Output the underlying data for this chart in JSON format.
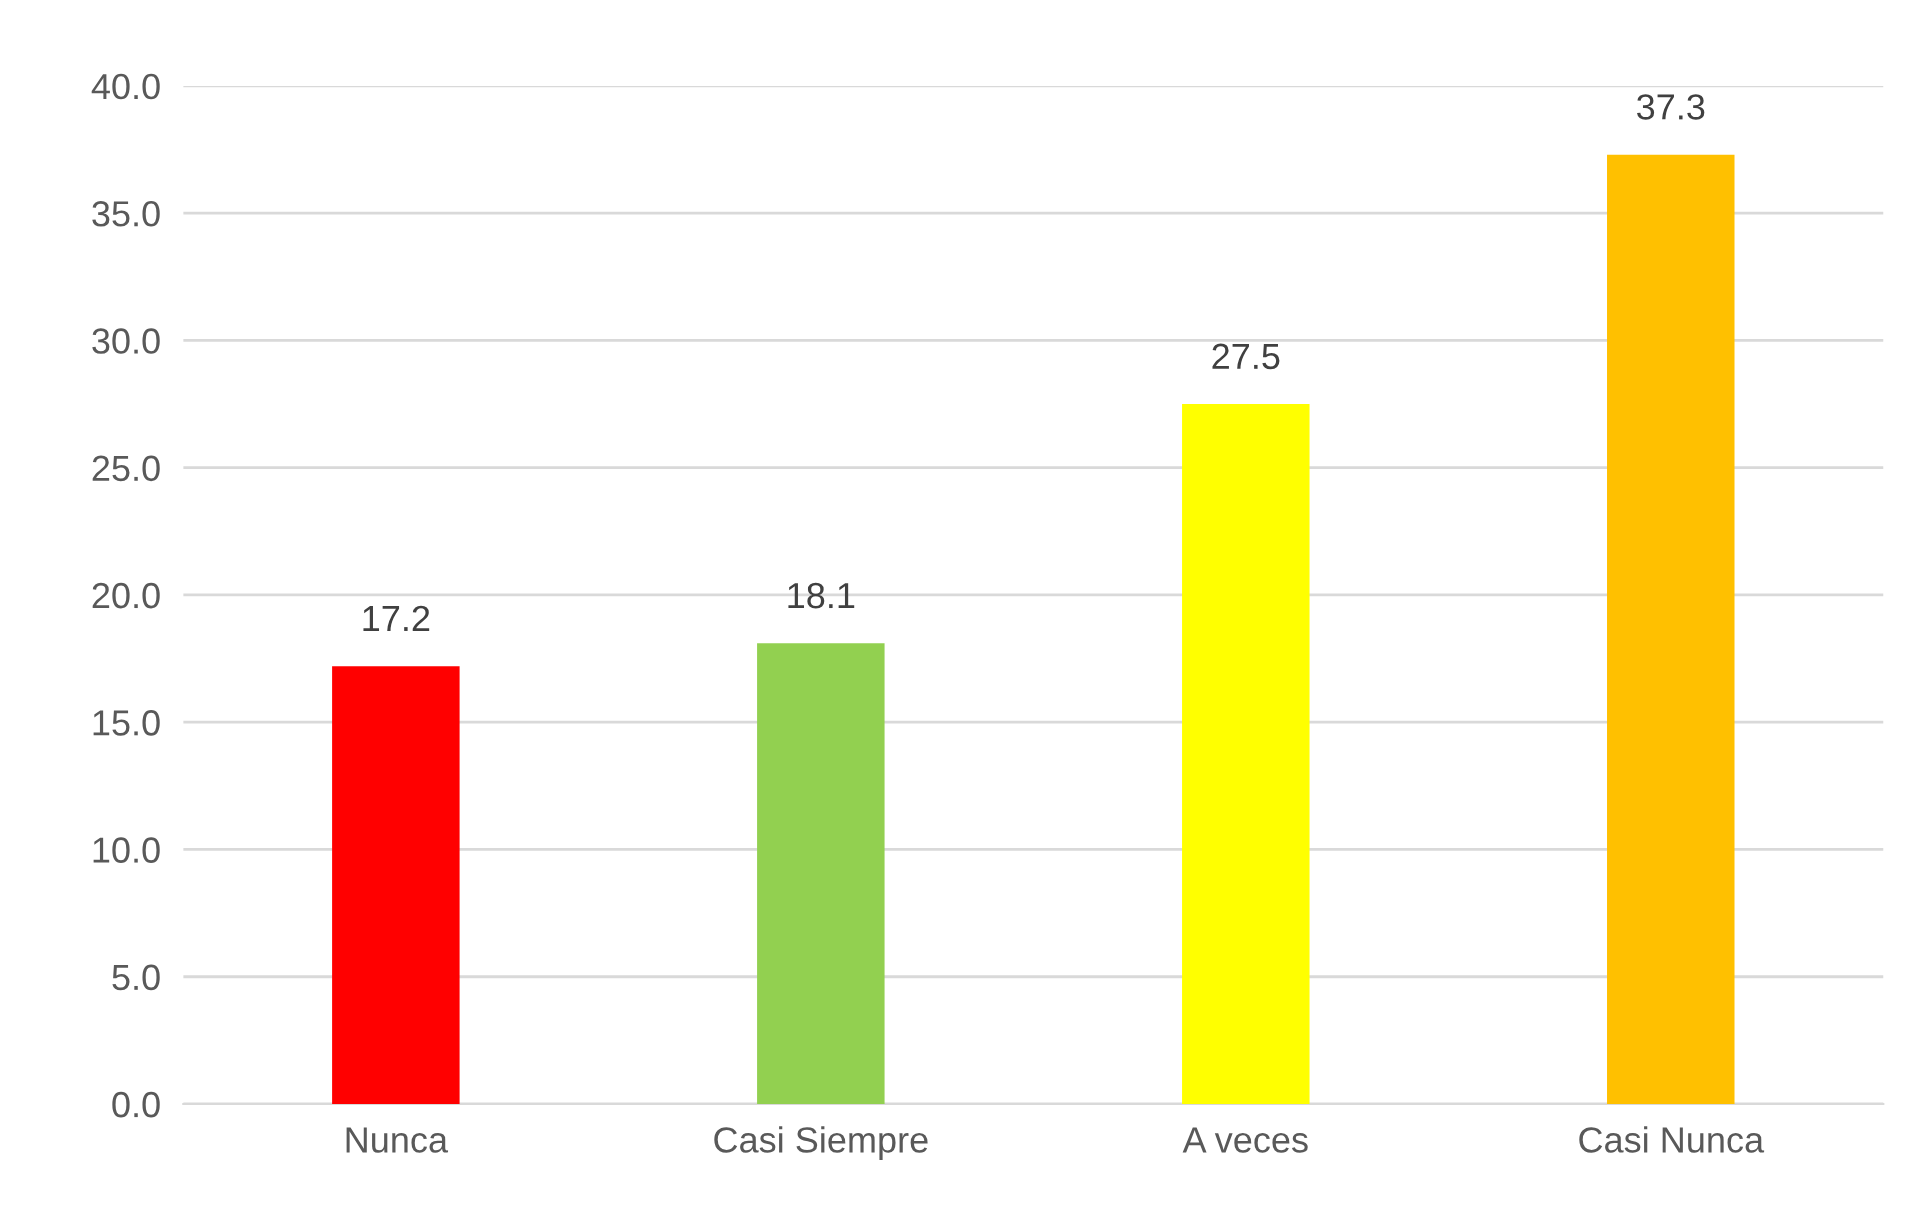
{
  "chart_data": {
    "type": "bar",
    "categories": [
      "Nunca",
      "Casi Siempre",
      "A veces",
      "Casi Nunca"
    ],
    "values": [
      17.2,
      18.1,
      27.5,
      37.3
    ],
    "colors": [
      "#ff0000",
      "#92d050",
      "#ffff00",
      "#ffc000"
    ],
    "ylim": [
      0,
      40
    ],
    "yticks": [
      {
        "value": 0,
        "label": "0.0"
      },
      {
        "value": 5,
        "label": "5.0"
      },
      {
        "value": 10,
        "label": "10.0"
      },
      {
        "value": 15,
        "label": "15.0"
      },
      {
        "value": 20,
        "label": "20.0"
      },
      {
        "value": 25,
        "label": "25.0"
      },
      {
        "value": 30,
        "label": "30.0"
      },
      {
        "value": 35,
        "label": "35.0"
      },
      {
        "value": 40,
        "label": "40.0"
      }
    ],
    "grid": "y",
    "data_labels": true
  }
}
